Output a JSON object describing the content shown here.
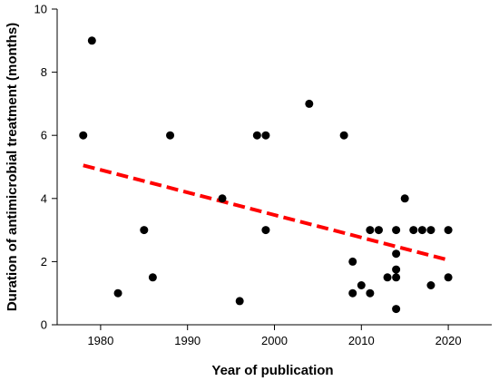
{
  "chart_data": {
    "type": "scatter",
    "xlabel": "Year of publication",
    "ylabel": "Duration of antimicrobial treatment (months)",
    "xlim": [
      1975,
      2025
    ],
    "ylim": [
      0,
      10
    ],
    "x_ticks": [
      1980,
      1990,
      2000,
      2010,
      2020
    ],
    "y_ticks": [
      0,
      2,
      4,
      6,
      8,
      10
    ],
    "grid": false,
    "legend": "none",
    "colors": {
      "points": "#000000",
      "trendline": "#ff0000",
      "axes": "#000000"
    },
    "series": [
      {
        "points": [
          [
            1978,
            6
          ],
          [
            1979,
            9
          ],
          [
            1982,
            1
          ],
          [
            1985,
            3
          ],
          [
            1986,
            1.5
          ],
          [
            1988,
            6
          ],
          [
            1994,
            4
          ],
          [
            1996,
            0.75
          ],
          [
            1998,
            6
          ],
          [
            1999,
            6
          ],
          [
            1999,
            3
          ],
          [
            2004,
            7
          ],
          [
            2008,
            6
          ],
          [
            2009,
            2
          ],
          [
            2009,
            1
          ],
          [
            2010,
            1.25
          ],
          [
            2011,
            3
          ],
          [
            2011,
            1
          ],
          [
            2012,
            3
          ],
          [
            2013,
            1.5
          ],
          [
            2014,
            3
          ],
          [
            2014,
            2.25
          ],
          [
            2014,
            1.75
          ],
          [
            2014,
            1.5
          ],
          [
            2014,
            0.5
          ],
          [
            2015,
            4
          ],
          [
            2016,
            3
          ],
          [
            2017,
            3
          ],
          [
            2018,
            3
          ],
          [
            2018,
            1.25
          ],
          [
            2020,
            3
          ],
          [
            2020,
            1.5
          ]
        ]
      }
    ],
    "trendline": {
      "style": "dashed",
      "points": [
        [
          1978,
          5.05
        ],
        [
          2020,
          2.05
        ]
      ]
    }
  }
}
